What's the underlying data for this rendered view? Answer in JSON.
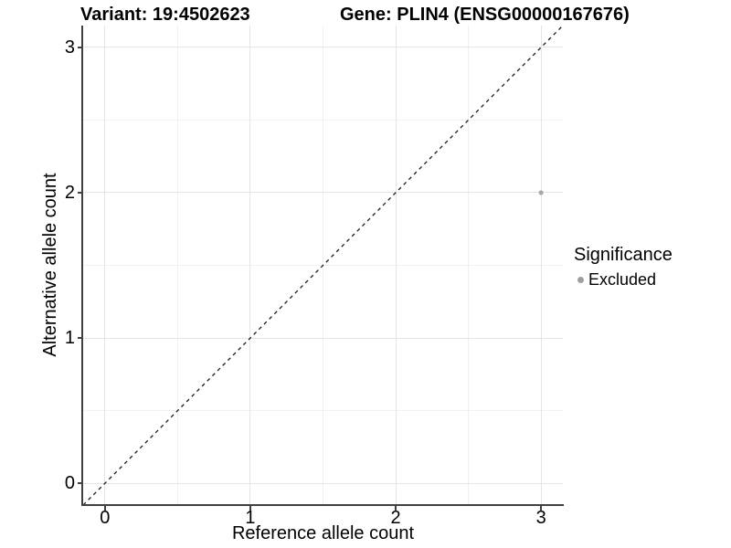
{
  "colors": {
    "background": "#ffffff",
    "axis_line": "#404040",
    "grid_major": "#e5e5e5",
    "grid_minor": "#f0f0f0",
    "text": "#000000",
    "point": "#a8a8a8",
    "legend_marker": "#9e9e9e",
    "reference_line": "#1a1a1a"
  },
  "chart_data": {
    "type": "scatter",
    "titles": {
      "left": "Variant: 19:4502623",
      "right": "Gene: PLIN4 (ENSG00000167676)"
    },
    "xlabel": "Reference allele count",
    "ylabel": "Alternative allele count",
    "xlim": [
      -0.15,
      3.15
    ],
    "ylim": [
      -0.15,
      3.15
    ],
    "x_major_ticks": [
      0,
      1,
      2,
      3
    ],
    "y_major_ticks": [
      0,
      1,
      2,
      3
    ],
    "x_minor_ticks": [
      0.5,
      1.5,
      2.5
    ],
    "y_minor_ticks": [
      0.5,
      1.5,
      2.5
    ],
    "grid": "major-and-minor",
    "series": [
      {
        "name": "Excluded",
        "color": "#a8a8a8",
        "marker": "circle",
        "points": [
          {
            "x": 3,
            "y": 2
          }
        ]
      }
    ],
    "reference_line": {
      "type": "identity",
      "equation": "y = x",
      "style": "dashed",
      "color": "#1a1a1a",
      "from": [
        -0.15,
        -0.15
      ],
      "to": [
        3.15,
        3.15
      ]
    },
    "legend": {
      "title": "Significance",
      "position": "right",
      "entries": [
        {
          "label": "Excluded",
          "color": "#9e9e9e",
          "marker": "circle"
        }
      ]
    }
  }
}
